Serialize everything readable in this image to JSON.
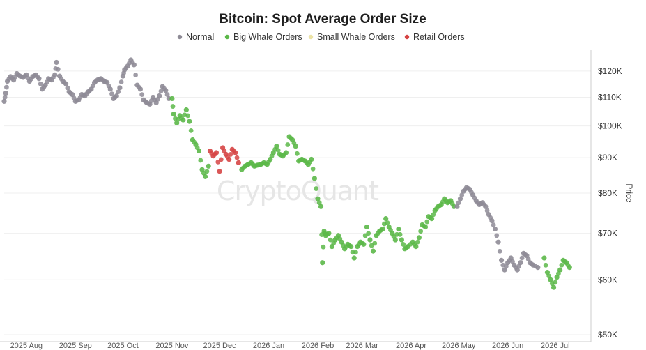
{
  "chart_data": {
    "type": "scatter",
    "title": "Bitcoin: Spot Average Order Size",
    "watermark": "CryptoQuant",
    "ylabel": "Price",
    "yscale": "log",
    "ylim": [
      50000,
      128000
    ],
    "y_ticks": [
      {
        "value": 120000,
        "label": "$120K"
      },
      {
        "value": 110000,
        "label": "$110K"
      },
      {
        "value": 100000,
        "label": "$100K"
      },
      {
        "value": 90000,
        "label": "$90K"
      },
      {
        "value": 80000,
        "label": "$80K"
      },
      {
        "value": 70000,
        "label": "$70K"
      },
      {
        "value": 60000,
        "label": "$60K"
      },
      {
        "value": 50000,
        "label": "$50K"
      }
    ],
    "xlim": [
      "2025-07-18",
      "2026-07-20"
    ],
    "x_ticks": [
      {
        "date": "2025-08-01",
        "label": "2025 Aug"
      },
      {
        "date": "2025-09-01",
        "label": "2025 Sep"
      },
      {
        "date": "2025-10-01",
        "label": "2025 Oct"
      },
      {
        "date": "2025-11-01",
        "label": "2025 Nov"
      },
      {
        "date": "2025-12-01",
        "label": "2025 Dec"
      },
      {
        "date": "2026-01-01",
        "label": "2026 Jan"
      },
      {
        "date": "2026-02-01",
        "label": "2026 Feb"
      },
      {
        "date": "2026-03-01",
        "label": "2026 Mar"
      },
      {
        "date": "2026-04-01",
        "label": "2026 Apr"
      },
      {
        "date": "2026-05-01",
        "label": "2026 May"
      },
      {
        "date": "2026-06-01",
        "label": "2026 Jun"
      },
      {
        "date": "2026-07-01",
        "label": "2026 Jul"
      }
    ],
    "grid": true,
    "legend": {
      "position": "top-center",
      "items": [
        {
          "key": "normal",
          "label": "Normal",
          "color": "#8e8b96"
        },
        {
          "key": "big",
          "label": "Big Whale Orders",
          "color": "#5cb849"
        },
        {
          "key": "small",
          "label": "Small Whale Orders",
          "color": "#ece3a6"
        },
        {
          "key": "retail",
          "label": "Retail Orders",
          "color": "#d64545"
        }
      ]
    },
    "series": [
      {
        "key": "normal",
        "anchors": [
          [
            "2025-07-18",
            108500
          ],
          [
            "2025-07-19",
            111500
          ],
          [
            "2025-07-20",
            116000
          ],
          [
            "2025-07-22",
            117800
          ],
          [
            "2025-07-24",
            116500
          ],
          [
            "2025-07-26",
            119000
          ],
          [
            "2025-07-28",
            118000
          ],
          [
            "2025-07-30",
            117500
          ],
          [
            "2025-08-01",
            118500
          ],
          [
            "2025-08-03",
            116000
          ],
          [
            "2025-08-05",
            117800
          ],
          [
            "2025-08-07",
            118500
          ],
          [
            "2025-08-09",
            117000
          ],
          [
            "2025-08-11",
            113000
          ],
          [
            "2025-08-13",
            114500
          ],
          [
            "2025-08-15",
            117000
          ],
          [
            "2025-08-17",
            116500
          ],
          [
            "2025-08-19",
            118500
          ],
          [
            "2025-08-20",
            123500
          ],
          [
            "2025-08-22",
            118000
          ],
          [
            "2025-08-24",
            116000
          ],
          [
            "2025-08-26",
            115000
          ],
          [
            "2025-08-28",
            112000
          ],
          [
            "2025-08-30",
            111000
          ],
          [
            "2025-09-01",
            108500
          ],
          [
            "2025-09-03",
            109000
          ],
          [
            "2025-09-05",
            111000
          ],
          [
            "2025-09-07",
            110500
          ],
          [
            "2025-09-09",
            112000
          ],
          [
            "2025-09-11",
            113000
          ],
          [
            "2025-09-13",
            115500
          ],
          [
            "2025-09-15",
            116500
          ],
          [
            "2025-09-17",
            117000
          ],
          [
            "2025-09-19",
            116000
          ],
          [
            "2025-09-21",
            115500
          ],
          [
            "2025-09-23",
            113000
          ],
          [
            "2025-09-25",
            109500
          ],
          [
            "2025-09-27",
            110500
          ],
          [
            "2025-09-29",
            113500
          ],
          [
            "2025-10-01",
            118000
          ],
          [
            "2025-10-02",
            120500
          ],
          [
            "2025-10-04",
            122000
          ],
          [
            "2025-10-06",
            124500
          ],
          [
            "2025-10-08",
            122500
          ],
          [
            "2025-10-10",
            114500
          ],
          [
            "2025-10-12",
            113000
          ],
          [
            "2025-10-14",
            109000
          ],
          [
            "2025-10-16",
            108000
          ],
          [
            "2025-10-18",
            107500
          ],
          [
            "2025-10-20",
            110000
          ],
          [
            "2025-10-22",
            108000
          ],
          [
            "2025-10-24",
            110500
          ],
          [
            "2025-10-26",
            114000
          ],
          [
            "2025-10-28",
            112500
          ],
          [
            "2025-10-30",
            109500
          ]
        ]
      },
      {
        "key": "big",
        "anchors": [
          [
            "2025-11-01",
            109500
          ],
          [
            "2025-11-02",
            104000
          ],
          [
            "2025-11-04",
            101000
          ],
          [
            "2025-11-06",
            103500
          ],
          [
            "2025-11-08",
            102000
          ],
          [
            "2025-11-10",
            105500
          ],
          [
            "2025-11-12",
            101500
          ],
          [
            "2025-11-14",
            95500
          ],
          [
            "2025-11-16",
            94000
          ],
          [
            "2025-11-18",
            92000
          ],
          [
            "2025-11-20",
            86500
          ],
          [
            "2025-11-22",
            84500
          ],
          [
            "2025-11-24",
            87500
          ],
          [
            "2025-12-15",
            86500
          ],
          [
            "2025-12-17",
            87500
          ],
          [
            "2025-12-19",
            88000
          ],
          [
            "2025-12-21",
            88500
          ],
          [
            "2025-12-23",
            87500
          ],
          [
            "2025-12-25",
            87800
          ],
          [
            "2025-12-27",
            88000
          ],
          [
            "2025-12-29",
            88500
          ],
          [
            "2025-12-31",
            88000
          ],
          [
            "2026-01-02",
            89500
          ],
          [
            "2026-01-04",
            91500
          ],
          [
            "2026-01-06",
            93500
          ],
          [
            "2026-01-08",
            91000
          ],
          [
            "2026-01-10",
            90500
          ],
          [
            "2026-01-12",
            91500
          ],
          [
            "2026-01-14",
            96500
          ],
          [
            "2026-01-16",
            95500
          ],
          [
            "2026-01-18",
            93500
          ],
          [
            "2026-01-20",
            89000
          ],
          [
            "2026-01-22",
            89500
          ],
          [
            "2026-01-24",
            89000
          ],
          [
            "2026-01-26",
            88000
          ],
          [
            "2026-01-28",
            89500
          ],
          [
            "2026-01-30",
            84000
          ],
          [
            "2026-02-01",
            78500
          ],
          [
            "2026-02-03",
            76500
          ],
          [
            "2026-02-04",
            63500
          ],
          [
            "2026-02-05",
            70500
          ],
          [
            "2026-02-06",
            69500
          ],
          [
            "2026-02-08",
            70000
          ],
          [
            "2026-02-10",
            67000
          ],
          [
            "2026-02-12",
            68500
          ],
          [
            "2026-02-14",
            69500
          ],
          [
            "2026-02-16",
            68000
          ],
          [
            "2026-02-18",
            66500
          ],
          [
            "2026-02-20",
            67500
          ],
          [
            "2026-02-22",
            67000
          ],
          [
            "2026-02-24",
            64500
          ],
          [
            "2026-02-26",
            67000
          ],
          [
            "2026-02-28",
            68000
          ],
          [
            "2026-03-02",
            67500
          ],
          [
            "2026-03-04",
            71500
          ],
          [
            "2026-03-06",
            68500
          ],
          [
            "2026-03-08",
            66000
          ],
          [
            "2026-03-10",
            69500
          ],
          [
            "2026-03-12",
            70500
          ],
          [
            "2026-03-14",
            71000
          ],
          [
            "2026-03-16",
            73500
          ],
          [
            "2026-03-18",
            71500
          ],
          [
            "2026-03-20",
            70000
          ],
          [
            "2026-03-22",
            68500
          ],
          [
            "2026-03-24",
            71000
          ],
          [
            "2026-03-26",
            68500
          ],
          [
            "2026-03-28",
            66500
          ],
          [
            "2026-03-30",
            67000
          ],
          [
            "2026-04-02",
            68000
          ],
          [
            "2026-04-04",
            67000
          ],
          [
            "2026-04-06",
            69000
          ],
          [
            "2026-04-08",
            72000
          ],
          [
            "2026-04-10",
            71500
          ],
          [
            "2026-04-12",
            74000
          ],
          [
            "2026-04-14",
            73500
          ],
          [
            "2026-04-16",
            75500
          ],
          [
            "2026-04-18",
            76500
          ],
          [
            "2026-04-20",
            77000
          ],
          [
            "2026-04-22",
            78500
          ],
          [
            "2026-04-24",
            77500
          ],
          [
            "2026-04-26",
            78000
          ],
          [
            "2026-04-28",
            76500
          ],
          [
            "2026-06-24",
            64500
          ],
          [
            "2026-06-26",
            61500
          ],
          [
            "2026-06-28",
            60000
          ],
          [
            "2026-06-30",
            58500
          ],
          [
            "2026-07-02",
            60500
          ],
          [
            "2026-07-04",
            62000
          ],
          [
            "2026-07-06",
            64000
          ],
          [
            "2026-07-08",
            63500
          ],
          [
            "2026-07-10",
            62500
          ]
        ]
      },
      {
        "key": "retail",
        "anchors": [
          [
            "2025-11-25",
            92000
          ],
          [
            "2025-11-27",
            90500
          ],
          [
            "2025-11-29",
            91500
          ],
          [
            "2025-12-01",
            86000
          ],
          [
            "2025-12-03",
            93000
          ],
          [
            "2025-12-05",
            91000
          ],
          [
            "2025-12-07",
            89500
          ],
          [
            "2025-12-09",
            92500
          ],
          [
            "2025-12-11",
            91500
          ],
          [
            "2025-12-13",
            88500
          ]
        ]
      },
      {
        "key": "normal",
        "anchors": [
          [
            "2026-04-30",
            76500
          ],
          [
            "2026-05-02",
            78500
          ],
          [
            "2026-05-04",
            80500
          ],
          [
            "2026-05-06",
            81500
          ],
          [
            "2026-05-08",
            81000
          ],
          [
            "2026-05-10",
            79500
          ],
          [
            "2026-05-12",
            78000
          ],
          [
            "2026-05-14",
            77000
          ],
          [
            "2026-05-16",
            77500
          ],
          [
            "2026-05-18",
            76500
          ],
          [
            "2026-05-20",
            74500
          ],
          [
            "2026-05-22",
            73000
          ],
          [
            "2026-05-24",
            71000
          ],
          [
            "2026-05-26",
            68000
          ],
          [
            "2026-05-28",
            64000
          ],
          [
            "2026-05-30",
            62000
          ],
          [
            "2026-06-01",
            63500
          ],
          [
            "2026-06-03",
            64500
          ],
          [
            "2026-06-05",
            63000
          ],
          [
            "2026-06-07",
            62000
          ],
          [
            "2026-06-09",
            63500
          ],
          [
            "2026-06-11",
            65500
          ],
          [
            "2026-06-13",
            65000
          ],
          [
            "2026-06-15",
            63500
          ],
          [
            "2026-06-17",
            63000
          ],
          [
            "2026-06-20",
            62500
          ]
        ]
      }
    ]
  }
}
